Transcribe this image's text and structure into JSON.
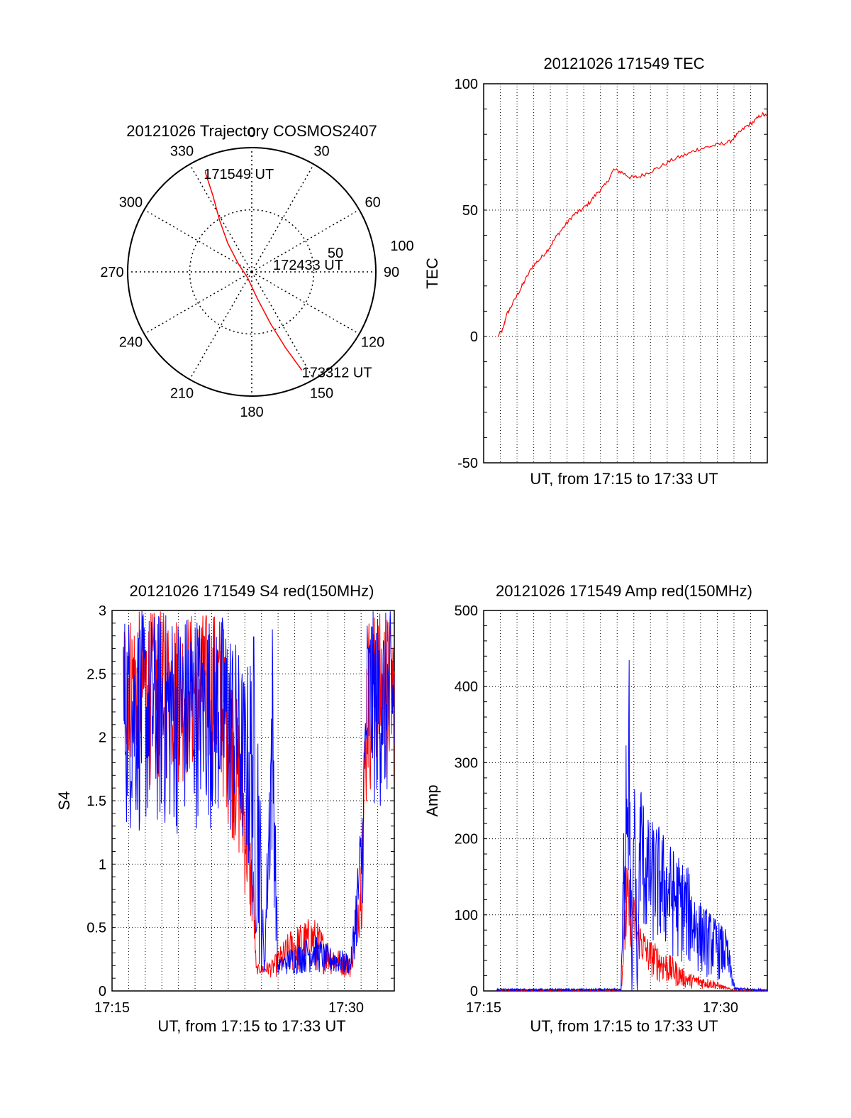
{
  "chart_data": [
    {
      "type": "polar",
      "title": "20121026 Trajectory COSMOS2407",
      "angle_labels": [
        "0",
        "30",
        "60",
        "90",
        "120",
        "150",
        "180",
        "210",
        "240",
        "270",
        "300",
        "330"
      ],
      "radial_labels": [
        "50",
        "100"
      ],
      "start_label": "171549 UT",
      "mid_label": "172433 UT",
      "end_label": "173312 UT",
      "line_color": "#ff0000",
      "track": [
        {
          "az": 335,
          "zen": 80
        },
        {
          "az": 333,
          "zen": 62
        },
        {
          "az": 328,
          "zen": 44
        },
        {
          "az": 320,
          "zen": 27
        },
        {
          "az": 300,
          "zen": 11
        },
        {
          "az": 220,
          "zen": 5
        },
        {
          "az": 168,
          "zen": 20
        },
        {
          "az": 160,
          "zen": 40
        },
        {
          "az": 156,
          "zen": 60
        },
        {
          "az": 153,
          "zen": 80
        }
      ]
    },
    {
      "type": "line",
      "title": "20121026 171549 TEC",
      "xlabel": "UT, from 17:15 to 17:33 UT",
      "ylabel": "TEC",
      "ylim": [
        -50,
        100
      ],
      "yticks": [
        "-50",
        "0",
        "50",
        "100"
      ],
      "grid": true,
      "series": [
        {
          "color": "#ff0000",
          "points": [
            [
              0.0,
              0
            ],
            [
              0.02,
              3
            ],
            [
              0.03,
              8
            ],
            [
              0.05,
              12
            ],
            [
              0.08,
              18
            ],
            [
              0.1,
              22
            ],
            [
              0.13,
              28
            ],
            [
              0.16,
              31
            ],
            [
              0.19,
              35
            ],
            [
              0.22,
              40
            ],
            [
              0.25,
              44
            ],
            [
              0.28,
              48
            ],
            [
              0.31,
              50
            ],
            [
              0.34,
              53
            ],
            [
              0.37,
              57
            ],
            [
              0.4,
              60
            ],
            [
              0.43,
              66
            ],
            [
              0.46,
              65
            ],
            [
              0.49,
              63
            ],
            [
              0.52,
              63
            ],
            [
              0.56,
              65
            ],
            [
              0.6,
              67
            ],
            [
              0.65,
              70
            ],
            [
              0.7,
              72
            ],
            [
              0.74,
              74
            ],
            [
              0.78,
              75
            ],
            [
              0.82,
              76
            ],
            [
              0.86,
              77
            ],
            [
              0.89,
              80
            ],
            [
              0.92,
              83
            ],
            [
              0.95,
              85
            ],
            [
              0.98,
              88
            ],
            [
              1.0,
              87
            ]
          ]
        }
      ]
    },
    {
      "type": "line",
      "title": "20121026 171549 S4 red(150MHz)",
      "xlabel": "UT, from 17:15 to 17:33 UT",
      "ylabel": "S4",
      "ylim": [
        0,
        3
      ],
      "yticks": [
        "0",
        "0.5",
        "1",
        "1.5",
        "2",
        "2.5",
        "3"
      ],
      "xticks": [
        "17:15",
        "17:30"
      ],
      "grid": true,
      "series": [
        {
          "name": "red",
          "color": "#ff0000",
          "envelope": [
            [
              0.0,
              1.8,
              3.0
            ],
            [
              0.1,
              1.6,
              3.0
            ],
            [
              0.2,
              1.6,
              3.0
            ],
            [
              0.3,
              1.6,
              3.0
            ],
            [
              0.36,
              1.5,
              3.0
            ],
            [
              0.4,
              1.2,
              2.6
            ],
            [
              0.44,
              0.8,
              2.0
            ],
            [
              0.48,
              0.35,
              1.0
            ],
            [
              0.49,
              0.13,
              0.2
            ],
            [
              0.55,
              0.1,
              0.25
            ],
            [
              0.62,
              0.12,
              0.5
            ],
            [
              0.7,
              0.15,
              0.6
            ],
            [
              0.76,
              0.12,
              0.4
            ],
            [
              0.84,
              0.1,
              0.25
            ],
            [
              0.88,
              0.5,
              1.2
            ],
            [
              0.9,
              1.5,
              3.0
            ],
            [
              1.0,
              1.6,
              3.0
            ]
          ]
        },
        {
          "name": "blue",
          "color": "#0000ff",
          "envelope": [
            [
              0.0,
              1.2,
              3.0
            ],
            [
              0.1,
              1.2,
              3.0
            ],
            [
              0.2,
              1.2,
              3.0
            ],
            [
              0.3,
              1.3,
              3.0
            ],
            [
              0.36,
              1.2,
              3.0
            ],
            [
              0.4,
              1.1,
              2.9
            ],
            [
              0.45,
              1.0,
              2.5
            ],
            [
              0.49,
              0.14,
              3.0
            ],
            [
              0.52,
              0.12,
              0.2
            ],
            [
              0.55,
              0.9,
              3.0
            ],
            [
              0.57,
              0.12,
              0.25
            ],
            [
              0.62,
              0.12,
              0.35
            ],
            [
              0.7,
              0.14,
              0.45
            ],
            [
              0.76,
              0.12,
              0.35
            ],
            [
              0.84,
              0.12,
              0.3
            ],
            [
              0.88,
              0.5,
              1.5
            ],
            [
              0.9,
              1.4,
              3.0
            ],
            [
              1.0,
              1.4,
              3.0
            ]
          ]
        }
      ]
    },
    {
      "type": "line",
      "title": "20121026 171549 Amp red(150MHz)",
      "xlabel": "UT, from 17:15 to 17:33 UT",
      "ylabel": "Amp",
      "ylim": [
        0,
        500
      ],
      "yticks": [
        "0",
        "100",
        "200",
        "300",
        "400",
        "500"
      ],
      "xticks": [
        "17:15",
        "17:30"
      ],
      "grid": true,
      "series": [
        {
          "name": "red",
          "color": "#ff0000",
          "envelope": [
            [
              0.0,
              0,
              2
            ],
            [
              0.46,
              0,
              2
            ],
            [
              0.48,
              40,
              170
            ],
            [
              0.5,
              60,
              140
            ],
            [
              0.52,
              40,
              100
            ],
            [
              0.56,
              20,
              70
            ],
            [
              0.6,
              10,
              60
            ],
            [
              0.65,
              5,
              45
            ],
            [
              0.7,
              3,
              25
            ],
            [
              0.8,
              2,
              15
            ],
            [
              0.85,
              1,
              5
            ],
            [
              0.88,
              0,
              2
            ],
            [
              1.0,
              0,
              2
            ]
          ]
        },
        {
          "name": "blue",
          "color": "#0000ff",
          "envelope": [
            [
              0.0,
              0,
              3
            ],
            [
              0.46,
              0,
              3
            ],
            [
              0.48,
              80,
              460
            ],
            [
              0.49,
              120,
              450
            ],
            [
              0.5,
              0,
              0
            ],
            [
              0.51,
              100,
              360
            ],
            [
              0.52,
              0,
              0
            ],
            [
              0.53,
              90,
              300
            ],
            [
              0.55,
              60,
              230
            ],
            [
              0.6,
              50,
              220
            ],
            [
              0.65,
              40,
              190
            ],
            [
              0.7,
              30,
              170
            ],
            [
              0.75,
              20,
              120
            ],
            [
              0.8,
              15,
              100
            ],
            [
              0.85,
              10,
              80
            ],
            [
              0.88,
              0,
              5
            ],
            [
              1.0,
              0,
              2
            ]
          ]
        }
      ]
    }
  ]
}
